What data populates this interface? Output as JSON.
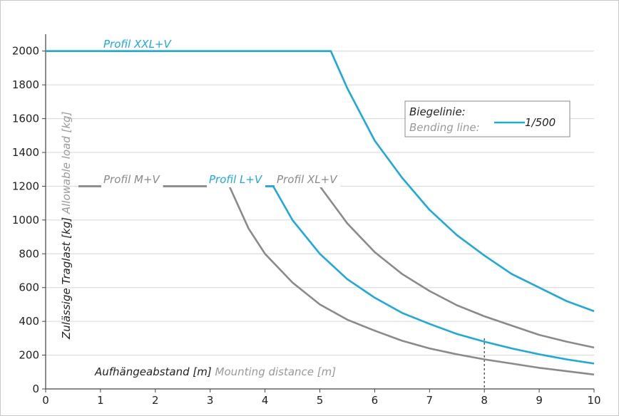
{
  "chart_data": {
    "type": "line",
    "xlabel_primary": "Aufhängeabstand [m]",
    "xlabel_secondary": "Mounting distance [m]",
    "ylabel_primary": "Zulässige Traglast [kg]",
    "ylabel_secondary": "Allowable load [kg]",
    "xlim": [
      0,
      10
    ],
    "ylim": [
      0,
      2100
    ],
    "x_ticks": [
      "0",
      "1",
      "2",
      "3",
      "4",
      "5",
      "6",
      "7",
      "8",
      "9",
      "10"
    ],
    "y_ticks": [
      "0",
      "200",
      "400",
      "600",
      "800",
      "1000",
      "1200",
      "1400",
      "1600",
      "1800",
      "2000"
    ],
    "grid": "horizontal",
    "marker_x": 8,
    "legend": {
      "title_primary": "Biegelinie:",
      "title_secondary": "Bending line:",
      "entry": "1/500",
      "placement": "top-right"
    },
    "series": [
      {
        "name": "Profil XXL+V",
        "color": "#1ba9de",
        "x": [
          0,
          5.2,
          5.5,
          6.0,
          6.5,
          7.0,
          7.5,
          8.0,
          8.5,
          9.0,
          9.5,
          10.0
        ],
        "y": [
          2000,
          2000,
          1780,
          1470,
          1250,
          1060,
          910,
          790,
          680,
          600,
          520,
          460
        ]
      },
      {
        "name": "Profil XL+V",
        "color": "#8a8a8c",
        "x": [
          0.6,
          5.0,
          5.5,
          6.0,
          6.5,
          7.0,
          7.5,
          8.0,
          8.5,
          9.0,
          9.5,
          10.0
        ],
        "y": [
          1200,
          1200,
          980,
          810,
          680,
          580,
          495,
          430,
          375,
          320,
          280,
          245
        ]
      },
      {
        "name": "Profil L+V",
        "color": "#1ba9de",
        "x": [
          3.45,
          4.15,
          4.5,
          5.0,
          5.5,
          6.0,
          6.5,
          7.0,
          7.5,
          8.0,
          8.5,
          9.0,
          9.5,
          10.0
        ],
        "y": [
          1200,
          1200,
          1000,
          800,
          650,
          540,
          450,
          385,
          325,
          280,
          240,
          205,
          175,
          150
        ]
      },
      {
        "name": "Profil M+V",
        "color": "#8a8a8c",
        "x": [
          0.6,
          3.35,
          3.7,
          4.0,
          4.5,
          5.0,
          5.5,
          6.0,
          6.5,
          7.0,
          7.5,
          8.0,
          8.5,
          9.0,
          9.5,
          10.0
        ],
        "y": [
          1200,
          1200,
          950,
          800,
          630,
          500,
          410,
          345,
          285,
          240,
          205,
          175,
          150,
          125,
          105,
          85
        ]
      }
    ]
  }
}
